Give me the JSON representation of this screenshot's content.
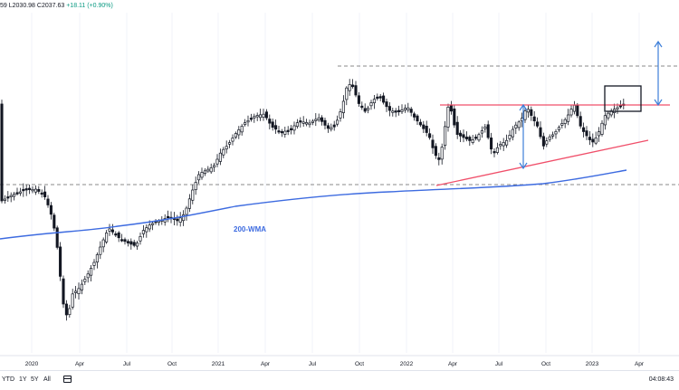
{
  "header": {
    "prefix": "59",
    "low": "L2030.98",
    "close": "C2037.63",
    "change": "+18.11 (+0.90%)"
  },
  "chart_data": {
    "type": "candlestick",
    "x_axis_ticks": [
      "2020",
      "Apr",
      "Jul",
      "Oct",
      "2021",
      "Apr",
      "Jul",
      "Oct",
      "2022",
      "Apr",
      "Jul",
      "Oct",
      "2023",
      "Apr"
    ],
    "annotations": {
      "ma_label": "200-WMA",
      "resistance_line_note": "horizontal resistance",
      "rising_support_line_note": "rising support",
      "breakout_box": "highlighted box near resistance"
    },
    "colors": {
      "candles": "#131722",
      "ma_line": "#3d6be0",
      "trendlines": "#f04f6a",
      "arrows": "#3d7fd9",
      "dashed_levels": "#888888"
    }
  },
  "bottom_bar": {
    "ranges": [
      "YTD",
      "1Y",
      "5Y",
      "All"
    ],
    "time": "04:08:43"
  }
}
